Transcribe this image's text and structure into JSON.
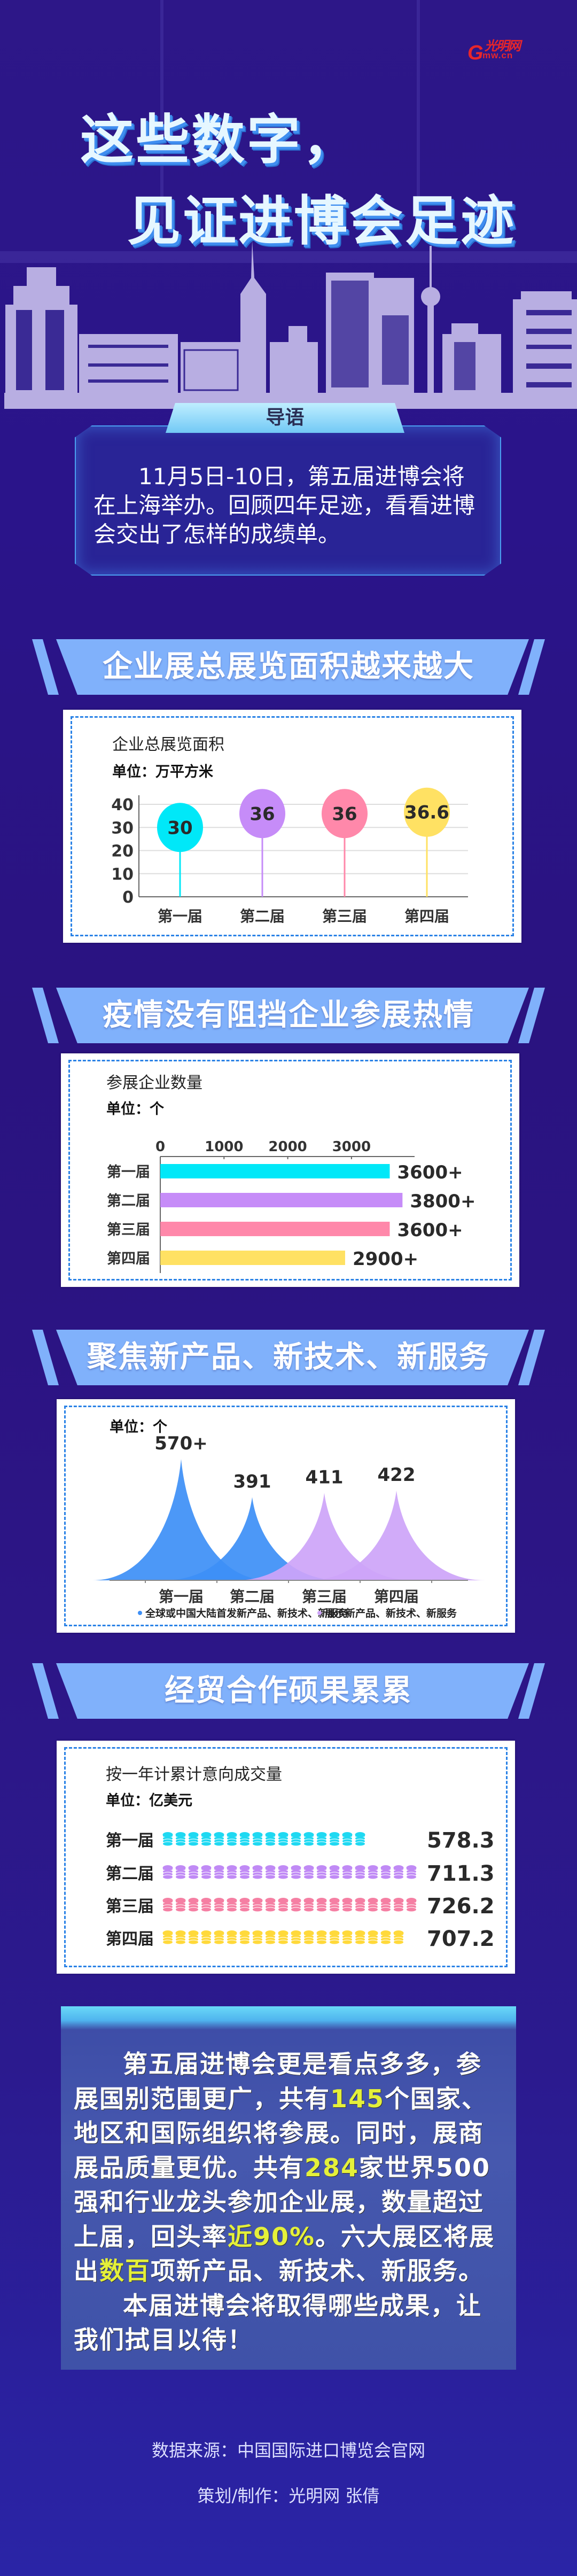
{
  "logo": {
    "text": "光明网",
    "domain": "mw.cn",
    "initial": "G"
  },
  "hero": {
    "line1": "这些数字，",
    "line2": "见证进博会足迹"
  },
  "intro": {
    "tab": "导语",
    "text": "11月5日-10日，第五届进博会将在上海举办。回顾四年足迹，看看进博会交出了怎样的成绩单。"
  },
  "sections": [
    {
      "title": "企业展总展览面积越来越大"
    },
    {
      "title": "疫情没有阻挡企业参展热情"
    },
    {
      "title": "聚焦新产品、新技术、新服务"
    },
    {
      "title": "经贸合作硕果累累"
    }
  ],
  "chart_data": [
    {
      "type": "lollipop",
      "title": "企业总展览面积",
      "unit": "单位：万平方米",
      "categories": [
        "第一届",
        "第二届",
        "第三届",
        "第四届"
      ],
      "values": [
        30,
        36,
        36,
        36.6
      ],
      "labels": [
        "30",
        "36",
        "36",
        "36.6"
      ],
      "ylim": [
        0,
        40
      ],
      "yticks": [
        "0",
        "10",
        "20",
        "30",
        "40"
      ],
      "grid": true,
      "colors": [
        "#00e8f8",
        "#c68cf8",
        "#ff88aa",
        "#ffe163"
      ]
    },
    {
      "type": "bar",
      "orientation": "horizontal",
      "title": "参展企业数量",
      "unit": "单位：个",
      "categories": [
        "第一届",
        "第二届",
        "第三届",
        "第四届"
      ],
      "values": [
        3600,
        3800,
        3600,
        2900
      ],
      "labels": [
        "3600+",
        "3800+",
        "3600+",
        "2900+"
      ],
      "xticks": [
        "0",
        "1000",
        "2000",
        "3000"
      ],
      "colors": [
        "#00e8f8",
        "#c68cf8",
        "#ff88aa",
        "#ffe163"
      ]
    },
    {
      "type": "area",
      "unit": "单位：个",
      "categories": [
        "第一届",
        "第二届",
        "第三届",
        "第四届"
      ],
      "values": [
        570,
        391,
        411,
        422
      ],
      "labels": [
        "570+",
        "391",
        "411",
        "422"
      ],
      "series": [
        {
          "name": "全球或中国大陆首发新产品、新技术、新服务",
          "color": "#3d8ff6",
          "points": [
            0,
            1
          ]
        },
        {
          "name": "展示新产品、新技术、新服务",
          "color": "#cda4f8",
          "points": [
            2,
            3
          ]
        }
      ],
      "legend": "bottom"
    },
    {
      "type": "pictogram",
      "title": "按一年计累计意向成交量",
      "unit": "单位：亿美元",
      "icon": "coin-stack-icon",
      "categories": [
        "第一届",
        "第二届",
        "第三届",
        "第四届"
      ],
      "values": [
        578.3,
        711.3,
        726.2,
        707.2
      ],
      "labels": [
        "578.3",
        "711.3",
        "726.2",
        "707.2"
      ],
      "colors": [
        "#1fd9f2",
        "#c08af5",
        "#f57fa3",
        "#ffd93a"
      ]
    }
  ],
  "summary": {
    "paragraphs": [
      [
        {
          "t": "第五届进博会更是看点多多，参展国别范围更广，共有"
        },
        {
          "t": "145",
          "hl": true
        },
        {
          "t": "个国家、地区和国际组织将参展。同时，展商展品质量更优。共有"
        },
        {
          "t": "284",
          "hl": true
        },
        {
          "t": "家世界500强和行业龙头参加企业展，数量超过上届，回头率"
        },
        {
          "t": "近90%",
          "hl": true
        },
        {
          "t": "。六大展区将展出"
        },
        {
          "t": "数百",
          "hl": true
        },
        {
          "t": "项新产品、新技术、新服务。"
        }
      ],
      [
        {
          "t": "本届进博会将取得哪些成果，让我们拭目以待！"
        }
      ]
    ],
    "highlight_color": "#e4f03a"
  },
  "footer": {
    "source": "数据来源：中国国际进口博览会官网",
    "credit": "策划/制作：光明网 张倩"
  }
}
